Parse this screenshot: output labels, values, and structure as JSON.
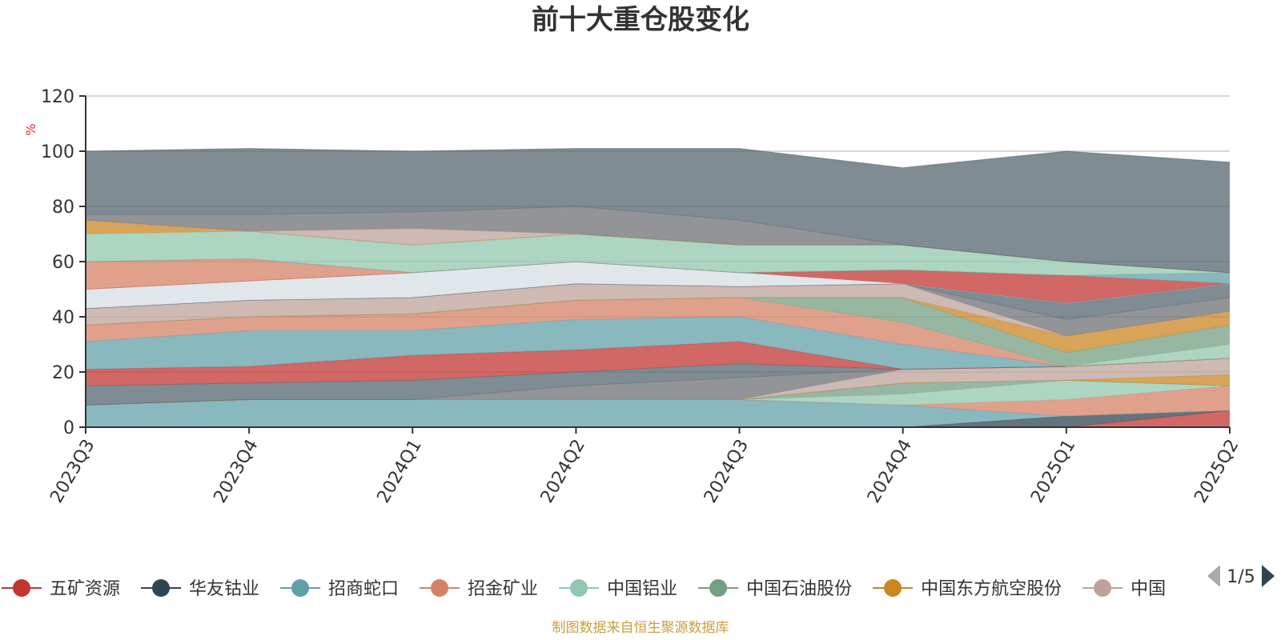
{
  "chart_data": {
    "type": "area",
    "title": "前十大重仓股变化",
    "ylabel": "%",
    "ylim": [
      0,
      120
    ],
    "yticks": [
      0,
      20,
      40,
      60,
      80,
      100,
      120
    ],
    "grid": true,
    "legend_position": "bottom",
    "categories": [
      "2023Q3",
      "2023Q4",
      "2024Q1",
      "2024Q2",
      "2024Q3",
      "2024Q4",
      "2025Q1",
      "2025Q2"
    ],
    "series": [
      {
        "name": "五矿资源",
        "color": "#c23531",
        "values": [
          0,
          0,
          0,
          0,
          0,
          0,
          0,
          6
        ]
      },
      {
        "name": "华友钴业",
        "color": "#2f4554",
        "values": [
          0,
          0,
          0,
          0,
          0,
          0,
          4,
          0
        ]
      },
      {
        "name": "招商蛇口",
        "color": "#61a0a8",
        "values": [
          8,
          10,
          10,
          10,
          10,
          8,
          0,
          0
        ]
      },
      {
        "name": "招金矿业",
        "color": "#d48265",
        "values": [
          0,
          0,
          0,
          0,
          0,
          0,
          6,
          9
        ]
      },
      {
        "name": "中国铝业",
        "color": "#91c7ae",
        "values": [
          0,
          0,
          0,
          0,
          0,
          4,
          7,
          0
        ]
      },
      {
        "name": "中国石油股份",
        "color": "#749f83",
        "values": [
          0,
          0,
          0,
          0,
          0,
          4,
          0,
          0
        ]
      },
      {
        "name": "中国东方航空股份",
        "color": "#ca8622",
        "values": [
          0,
          0,
          0,
          0,
          0,
          0,
          0,
          4
        ]
      },
      {
        "name": "中国",
        "color": "#bda29a",
        "values": [
          0,
          0,
          0,
          0,
          0,
          5,
          5,
          6
        ]
      },
      {
        "name": "",
        "color": "#6e7074",
        "values": [
          0,
          0,
          0,
          5,
          8,
          0,
          0,
          0
        ]
      },
      {
        "name": "",
        "color": "#546570",
        "values": [
          7,
          6,
          7,
          5,
          5,
          0,
          0,
          0
        ]
      },
      {
        "name": "",
        "color": "#c23531",
        "values": [
          6,
          6,
          9,
          8,
          8,
          0,
          0,
          0
        ]
      },
      {
        "name": "",
        "color": "#61a0a8",
        "values": [
          10,
          13,
          9,
          11,
          9,
          9,
          0,
          0
        ]
      },
      {
        "name": "",
        "color": "#d48265",
        "values": [
          6,
          5,
          6,
          7,
          7,
          8,
          0,
          0
        ]
      },
      {
        "name": "",
        "color": "#91c7ae",
        "values": [
          0,
          0,
          0,
          0,
          0,
          0,
          0,
          5
        ]
      },
      {
        "name": "",
        "color": "#749f83",
        "values": [
          0,
          0,
          0,
          0,
          0,
          9,
          5,
          7
        ]
      },
      {
        "name": "",
        "color": "#ca8622",
        "values": [
          0,
          0,
          0,
          0,
          0,
          0,
          6,
          5
        ]
      },
      {
        "name": "",
        "color": "#bda29a",
        "values": [
          6,
          6,
          6,
          6,
          4,
          5,
          0,
          0
        ]
      },
      {
        "name": "",
        "color": "#6e7074",
        "values": [
          0,
          0,
          0,
          0,
          0,
          0,
          6,
          5
        ]
      },
      {
        "name": "",
        "color": "#546570",
        "values": [
          0,
          0,
          0,
          0,
          0,
          0,
          6,
          5
        ]
      },
      {
        "name": "",
        "color": "#d7dde3",
        "values": [
          7,
          7,
          9,
          8,
          5,
          0,
          0,
          0
        ]
      },
      {
        "name": "",
        "color": "#c23531",
        "values": [
          0,
          0,
          0,
          0,
          0,
          5,
          10,
          0
        ]
      },
      {
        "name": "",
        "color": "#d48265",
        "values": [
          10,
          8,
          0,
          0,
          0,
          0,
          0,
          0
        ]
      },
      {
        "name": "",
        "color": "#61a0a8",
        "values": [
          0,
          0,
          0,
          0,
          0,
          0,
          0,
          4
        ]
      },
      {
        "name": "",
        "color": "#91c7ae",
        "values": [
          10,
          10,
          10,
          10,
          10,
          9,
          5,
          0
        ]
      },
      {
        "name": "",
        "color": "#ca8622",
        "values": [
          5,
          0,
          0,
          0,
          0,
          0,
          0,
          0
        ]
      },
      {
        "name": "",
        "color": "#bda29a",
        "values": [
          0,
          0,
          6,
          0,
          0,
          0,
          0,
          0
        ]
      },
      {
        "name": "",
        "color": "#6e7074",
        "values": [
          2,
          6,
          6,
          10,
          9,
          0,
          0,
          0
        ]
      },
      {
        "name": "",
        "color": "#546570",
        "values": [
          23,
          24,
          22,
          21,
          26,
          28,
          40,
          40
        ]
      }
    ]
  },
  "legend": {
    "page": "1/5"
  },
  "source": "制图数据来自恒生聚源数据库"
}
